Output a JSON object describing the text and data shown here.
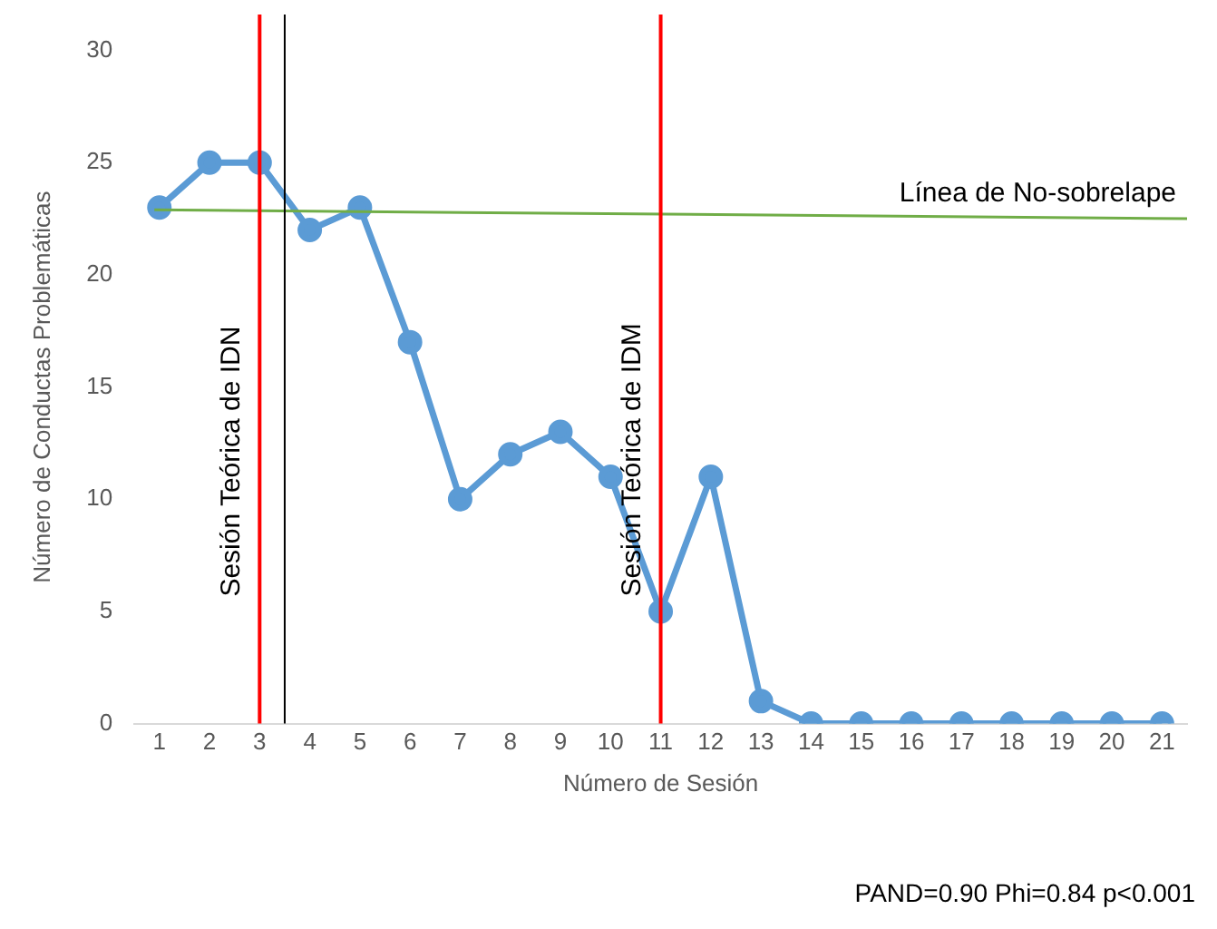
{
  "chart_data": {
    "type": "line",
    "xlabel": "Número de Sesión",
    "ylabel": "Número de Conductas Problemáticas",
    "x": [
      1,
      2,
      3,
      4,
      5,
      6,
      7,
      8,
      9,
      10,
      11,
      12,
      13,
      14,
      15,
      16,
      17,
      18,
      19,
      20,
      21
    ],
    "xlim": [
      0.5,
      21.5
    ],
    "xticks": [
      1,
      2,
      3,
      4,
      5,
      6,
      7,
      8,
      9,
      10,
      11,
      12,
      13,
      14,
      15,
      16,
      17,
      18,
      19,
      20,
      21
    ],
    "ylim": [
      0,
      30
    ],
    "yticks": [
      0,
      5,
      10,
      15,
      20,
      25,
      30
    ],
    "grid": false,
    "legend": false,
    "marker": "circle",
    "line_style": "solid",
    "series": [
      {
        "color": "#5b9bd5",
        "values": [
          23,
          25,
          25,
          22,
          23,
          17,
          10,
          12,
          13,
          11,
          5,
          11,
          1,
          0,
          0,
          0,
          0,
          0,
          0,
          0,
          0
        ]
      },
      {
        "name": "Línea de No-sobrelape",
        "marker": "none",
        "color": "#70ad47",
        "x": [
          0.9,
          21.5
        ],
        "values": [
          22.9,
          22.5
        ]
      }
    ],
    "ref_lines": [
      {
        "axis": "x",
        "value": 3,
        "label": "Sesión Teórica de IDN",
        "color": "#ff0000"
      },
      {
        "axis": "x",
        "value": 3.5,
        "color": "#000000"
      },
      {
        "axis": "x",
        "value": 11,
        "label": "Sesión Teórica de IDM",
        "color": "#ff0000"
      }
    ],
    "annotations": [
      "PAND=0.90 Phi=0.84 p<0.001"
    ]
  }
}
